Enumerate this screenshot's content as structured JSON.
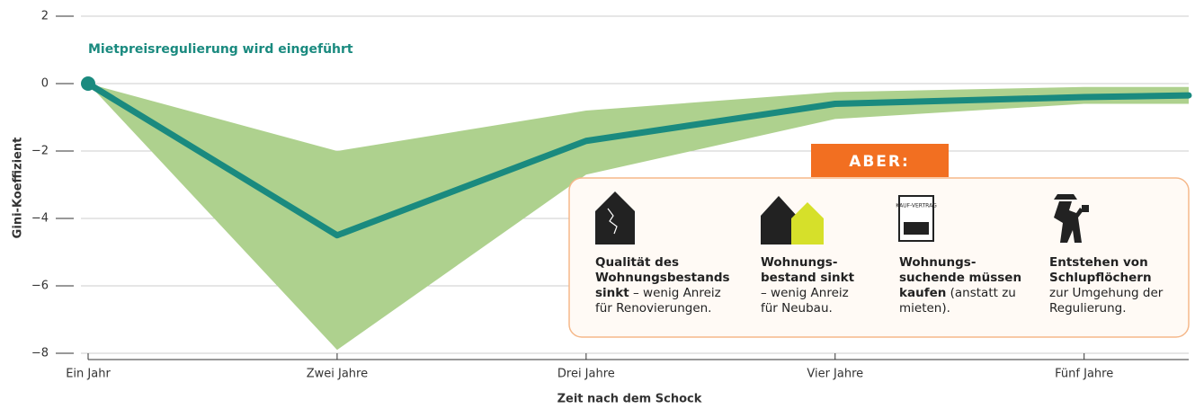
{
  "chart_data": {
    "type": "line",
    "y_label": "Gini-Koeffizient",
    "x_label": "Zeit nach dem Schock",
    "x": [
      1,
      2,
      3,
      4,
      5,
      5.42
    ],
    "values": [
      0,
      -4.5,
      -1.7,
      -0.6,
      -0.4,
      -0.35
    ],
    "upper": [
      0,
      -2,
      -0.8,
      -0.25,
      -0.1,
      -0.1
    ],
    "lower": [
      0,
      -7.9,
      -2.7,
      -1.05,
      -0.6,
      -0.6
    ],
    "color": "#1a8a7f",
    "band_color": "#aed18e",
    "grid": true,
    "xlim": [
      1,
      5.42
    ],
    "xticks": [
      {
        "value": 1,
        "label": "Ein Jahr"
      },
      {
        "value": 2,
        "label": "Zwei Jahre"
      },
      {
        "value": 3,
        "label": "Drei Jahre"
      },
      {
        "value": 4,
        "label": "Vier Jahre"
      },
      {
        "value": 5,
        "label": "Fünf Jahre"
      }
    ],
    "ylim": [
      -8,
      2
    ],
    "yticks": [
      {
        "value": -8,
        "label": "−8"
      },
      {
        "value": -6,
        "label": "−6"
      },
      {
        "value": -4,
        "label": "−4"
      },
      {
        "value": -2,
        "label": "−2"
      },
      0,
      2
    ],
    "annotation": "Mietpreisregulierung wird eingeführt",
    "banner": "ABER:",
    "icon_text": "KAUF-VERTRAG",
    "items": [
      {
        "bold": "Qualität des Wohnungsbestands sinkt",
        "text": " – wenig Anreiz für Renovierungen."
      },
      {
        "bold": "Wohnungs-bestand sinkt",
        "text": " – wenig Anreiz für Neubau."
      },
      {
        "bold": "Wohnungs-suchende müssen kaufen",
        "text": " (anstatt zu mieten)."
      },
      {
        "bold": "Entstehen von Schlupflöchern",
        "text": "zur Umgehung der Regulierung.",
        "bold_block": true
      }
    ]
  }
}
